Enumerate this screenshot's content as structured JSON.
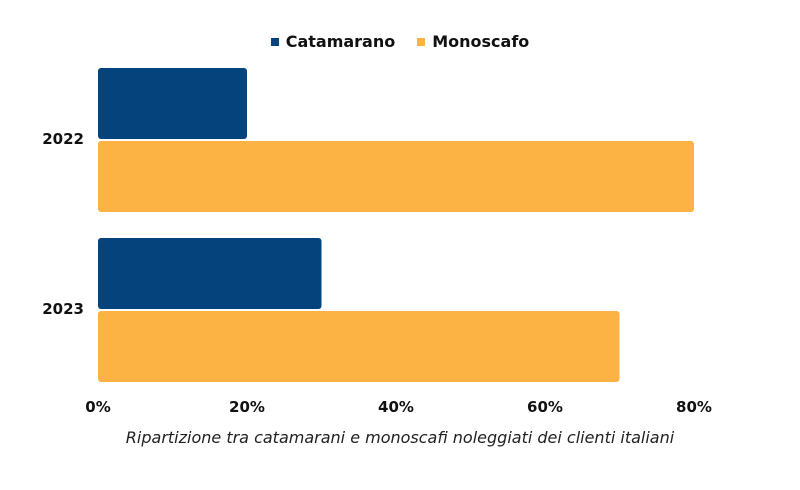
{
  "chart_data": {
    "type": "bar",
    "orientation": "horizontal",
    "categories": [
      "2022",
      "2023"
    ],
    "series": [
      {
        "name": "Catamarano",
        "values": [
          20,
          30
        ],
        "color": "#05437c"
      },
      {
        "name": "Monoscafo",
        "values": [
          80,
          70
        ],
        "color": "#fdb244"
      }
    ],
    "x_ticks": [
      "0%",
      "20%",
      "40%",
      "60%",
      "80%"
    ],
    "xlim": [
      0,
      80
    ],
    "unit": "%",
    "legend_placement": "top-center",
    "grid": false
  },
  "caption": "Ripartizione tra catamarani e monoscafi noleggiati dei clienti italiani"
}
